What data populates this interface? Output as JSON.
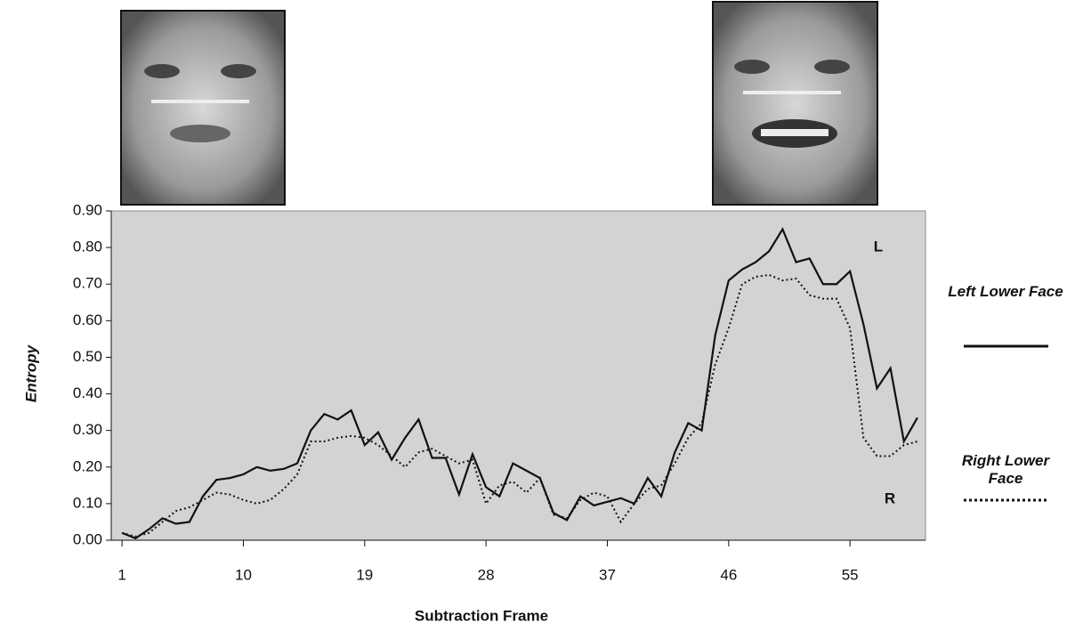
{
  "chart_data": {
    "type": "line",
    "x_label": "Subtraction Frame",
    "y_label": "Entropy",
    "x": [
      1,
      2,
      3,
      4,
      5,
      6,
      7,
      8,
      9,
      10,
      11,
      12,
      13,
      14,
      15,
      16,
      17,
      18,
      19,
      20,
      21,
      22,
      23,
      24,
      25,
      26,
      27,
      28,
      29,
      30,
      31,
      32,
      33,
      34,
      35,
      36,
      37,
      38,
      39,
      40,
      41,
      42,
      43,
      44,
      45,
      46,
      47,
      48,
      49,
      50,
      51,
      52,
      53,
      54,
      55,
      56,
      57,
      58,
      59,
      60
    ],
    "series": [
      {
        "name": "Left Lower Face",
        "color": "#111111",
        "style": "solid",
        "values": [
          0.02,
          0.005,
          0.03,
          0.06,
          0.045,
          0.05,
          0.12,
          0.165,
          0.17,
          0.18,
          0.2,
          0.19,
          0.195,
          0.21,
          0.3,
          0.345,
          0.33,
          0.355,
          0.26,
          0.295,
          0.22,
          0.28,
          0.33,
          0.225,
          0.225,
          0.125,
          0.235,
          0.145,
          0.12,
          0.21,
          0.19,
          0.17,
          0.075,
          0.055,
          0.12,
          0.095,
          0.105,
          0.115,
          0.1,
          0.17,
          0.12,
          0.24,
          0.32,
          0.3,
          0.56,
          0.71,
          0.74,
          0.76,
          0.79,
          0.85,
          0.76,
          0.77,
          0.7,
          0.7,
          0.735,
          0.59,
          0.415,
          0.47,
          0.27,
          0.335
        ]
      },
      {
        "name": "Right Lower Face",
        "color": "#111111",
        "style": "dotted",
        "values": [
          0.02,
          0.01,
          0.02,
          0.05,
          0.08,
          0.09,
          0.11,
          0.13,
          0.125,
          0.11,
          0.1,
          0.11,
          0.14,
          0.18,
          0.27,
          0.27,
          0.28,
          0.285,
          0.28,
          0.26,
          0.23,
          0.2,
          0.24,
          0.25,
          0.23,
          0.21,
          0.22,
          0.1,
          0.15,
          0.16,
          0.13,
          0.17,
          0.07,
          0.06,
          0.11,
          0.13,
          0.12,
          0.05,
          0.1,
          0.14,
          0.15,
          0.21,
          0.28,
          0.32,
          0.48,
          0.58,
          0.7,
          0.72,
          0.725,
          0.71,
          0.715,
          0.67,
          0.66,
          0.66,
          0.58,
          0.28,
          0.23,
          0.23,
          0.26,
          0.27
        ]
      }
    ],
    "annotations": [
      "L",
      "R"
    ],
    "xlim": [
      0.2,
      60.6
    ],
    "xticks": [
      1,
      10,
      19,
      28,
      37,
      46,
      55
    ],
    "ylim": [
      0,
      0.9
    ],
    "yticks": [
      {
        "value": 0,
        "label": "0.00"
      },
      {
        "value": 0.1,
        "label": "0.10"
      },
      {
        "value": 0.2,
        "label": "0.20"
      },
      {
        "value": 0.3,
        "label": "0.30"
      },
      {
        "value": 0.4,
        "label": "0.40"
      },
      {
        "value": 0.5,
        "label": "0.50"
      },
      {
        "value": 0.6,
        "label": "0.60"
      },
      {
        "value": 0.7,
        "label": "0.70"
      },
      {
        "value": 0.8,
        "label": "0.80"
      },
      {
        "value": 0.9,
        "label": "0.90"
      }
    ],
    "plot_background": "#d3d3d3"
  }
}
